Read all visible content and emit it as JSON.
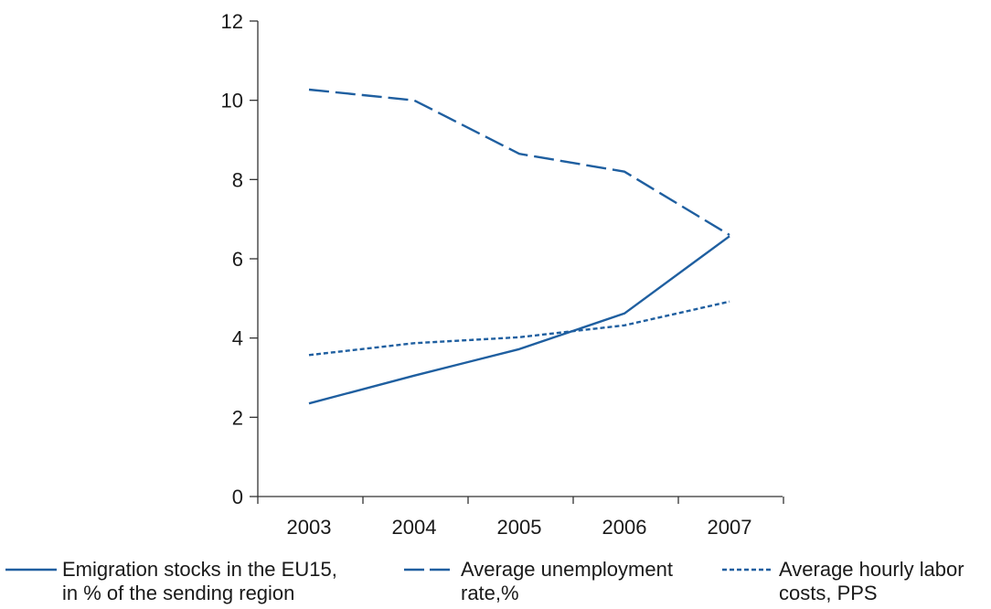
{
  "chart_data": {
    "type": "line",
    "categories": [
      "2003",
      "2004",
      "2005",
      "2006",
      "2007"
    ],
    "ylim": [
      0,
      12
    ],
    "yticks": [
      0,
      2,
      4,
      6,
      8,
      10,
      12
    ],
    "grid": false,
    "legend_position": "bottom",
    "line_color": "#1f5fa0",
    "series": [
      {
        "name_line1": "Emigration stocks in  the EU15,",
        "name_line2": "in % of the sending region",
        "style": "solid",
        "values": [
          2.35,
          3.05,
          3.72,
          4.62,
          6.57
        ]
      },
      {
        "name_line1": "Average unemployment",
        "name_line2": "rate,%",
        "style": "dashed",
        "values": [
          10.27,
          10.0,
          8.65,
          8.2,
          6.6
        ]
      },
      {
        "name_line1": "Average hourly labor",
        "name_line2": "costs, PPS",
        "style": "dotted",
        "values": [
          3.57,
          3.87,
          4.02,
          4.32,
          4.92
        ]
      }
    ]
  }
}
